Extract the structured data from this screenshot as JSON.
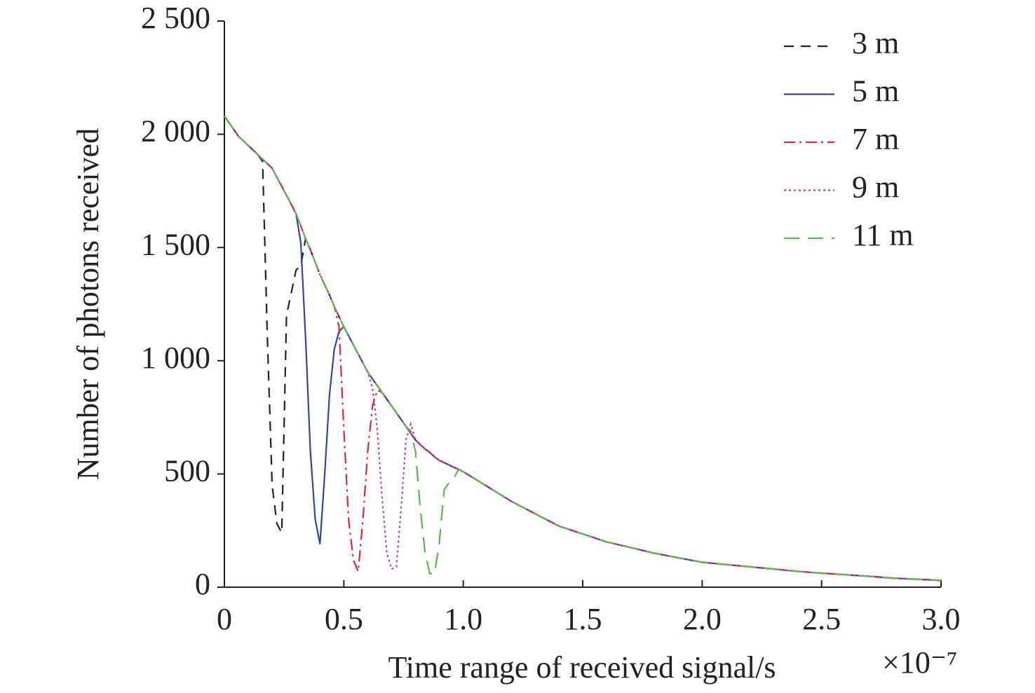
{
  "chart_data": {
    "type": "line",
    "x_label": "Time range of received signal/s",
    "x_multiplier": "×10⁻⁷",
    "y_label": "Number of photons received",
    "xlim": [
      0,
      3
    ],
    "ylim": [
      0,
      2500
    ],
    "xticks": [
      0,
      0.5,
      {
        "value": 1,
        "label": "1.0"
      },
      1.5,
      {
        "value": 2,
        "label": "2.0"
      },
      2.5,
      {
        "value": 3,
        "label": "3.0"
      }
    ],
    "yticks": [
      0,
      500,
      {
        "value": 1000,
        "label": "1 000"
      },
      {
        "value": 1500,
        "label": "1 500"
      },
      {
        "value": 2000,
        "label": "2 000"
      },
      {
        "value": 2500,
        "label": "2 500"
      }
    ],
    "legend": "upper right",
    "x": [
      0,
      0.02,
      0.04,
      0.06,
      0.08,
      0.1,
      0.12,
      0.14,
      0.16,
      0.18,
      0.2,
      0.22,
      0.24,
      0.26,
      0.28,
      0.3,
      0.32,
      0.34,
      0.36,
      0.38,
      0.4,
      0.42,
      0.44,
      0.46,
      0.48,
      0.5,
      0.52,
      0.54,
      0.56,
      0.58,
      0.6,
      0.62,
      0.64,
      0.66,
      0.68,
      0.7,
      0.72,
      0.74,
      0.76,
      0.78,
      0.8,
      0.82,
      0.84,
      0.86,
      0.88,
      0.9,
      0.92,
      0.94,
      0.96,
      0.98,
      1,
      1.1,
      1.2,
      1.3,
      1.4,
      1.5,
      1.6,
      1.7,
      1.8,
      1.9,
      2,
      2.1,
      2.2,
      2.3,
      2.4,
      2.5,
      2.6,
      2.7,
      2.8,
      2.9,
      3
    ],
    "series": [
      {
        "name": "3 m",
        "color": "#222222",
        "dash": "dashed",
        "values": [
          2080,
          2050,
          2020,
          1990,
          1970,
          1950,
          1930,
          1910,
          1880,
          1100,
          450,
          280,
          240,
          1200,
          1300,
          1400,
          1420,
          1540,
          1490,
          1435,
          1380,
          1335,
          1290,
          1240,
          1195,
          1150,
          1110,
          1070,
          1030,
          990,
          950,
          920,
          890,
          860,
          830,
          800,
          770,
          740,
          710,
          680,
          650,
          630,
          610,
          595,
          575,
          560,
          550,
          540,
          530,
          520,
          510,
          445,
          380,
          325,
          270,
          235,
          200,
          175,
          150,
          130,
          110,
          100,
          90,
          80,
          70,
          62,
          55,
          48,
          40,
          35,
          30
        ]
      },
      {
        "name": "5 m",
        "color": "#34469a",
        "dash": "solid",
        "values": [
          2080,
          2050,
          2020,
          1990,
          1970,
          1950,
          1930,
          1910,
          1890,
          1870,
          1850,
          1810,
          1770,
          1730,
          1690,
          1650,
          1520,
          1100,
          600,
          300,
          190,
          500,
          850,
          1050,
          1130,
          1150,
          1110,
          1070,
          1030,
          990,
          950,
          920,
          890,
          860,
          830,
          800,
          770,
          740,
          710,
          680,
          650,
          630,
          610,
          595,
          575,
          560,
          550,
          540,
          530,
          520,
          510,
          445,
          380,
          325,
          270,
          235,
          200,
          175,
          150,
          130,
          110,
          100,
          90,
          80,
          70,
          62,
          55,
          48,
          40,
          35,
          30
        ]
      },
      {
        "name": "7 m",
        "color": "#d42a3a",
        "dash": "dashdot",
        "values": [
          2080,
          2050,
          2020,
          1990,
          1970,
          1950,
          1930,
          1910,
          1890,
          1870,
          1850,
          1810,
          1770,
          1730,
          1690,
          1650,
          1595,
          1540,
          1490,
          1435,
          1380,
          1335,
          1290,
          1240,
          1150,
          700,
          300,
          120,
          70,
          300,
          600,
          800,
          870,
          860,
          830,
          800,
          770,
          740,
          710,
          680,
          650,
          630,
          610,
          595,
          575,
          560,
          550,
          540,
          530,
          520,
          510,
          445,
          380,
          325,
          270,
          235,
          200,
          175,
          150,
          130,
          110,
          100,
          90,
          80,
          70,
          62,
          55,
          48,
          40,
          35,
          30
        ]
      },
      {
        "name": "9 m",
        "color": "#b43cc0",
        "dash": "dotted",
        "values": [
          2080,
          2050,
          2020,
          1990,
          1970,
          1950,
          1930,
          1910,
          1890,
          1870,
          1850,
          1810,
          1770,
          1730,
          1690,
          1650,
          1595,
          1540,
          1490,
          1435,
          1380,
          1335,
          1290,
          1240,
          1195,
          1150,
          1110,
          1070,
          1030,
          990,
          950,
          880,
          700,
          400,
          150,
          80,
          90,
          350,
          650,
          720,
          650,
          630,
          610,
          595,
          575,
          560,
          550,
          540,
          530,
          520,
          510,
          445,
          380,
          325,
          270,
          235,
          200,
          175,
          150,
          130,
          110,
          100,
          90,
          80,
          70,
          62,
          55,
          48,
          40,
          35,
          30
        ]
      },
      {
        "name": "11 m",
        "color": "#5cb84a",
        "dash": "longdash",
        "values": [
          2080,
          2050,
          2020,
          1990,
          1970,
          1950,
          1930,
          1910,
          1890,
          1870,
          1850,
          1810,
          1770,
          1730,
          1690,
          1650,
          1595,
          1540,
          1490,
          1435,
          1380,
          1335,
          1290,
          1240,
          1195,
          1150,
          1110,
          1070,
          1030,
          990,
          950,
          920,
          890,
          860,
          830,
          800,
          770,
          740,
          710,
          690,
          600,
          350,
          150,
          60,
          60,
          200,
          430,
          460,
          480,
          520,
          510,
          445,
          380,
          325,
          270,
          235,
          200,
          175,
          150,
          130,
          110,
          100,
          90,
          80,
          70,
          62,
          55,
          48,
          40,
          35,
          30
        ]
      }
    ]
  }
}
